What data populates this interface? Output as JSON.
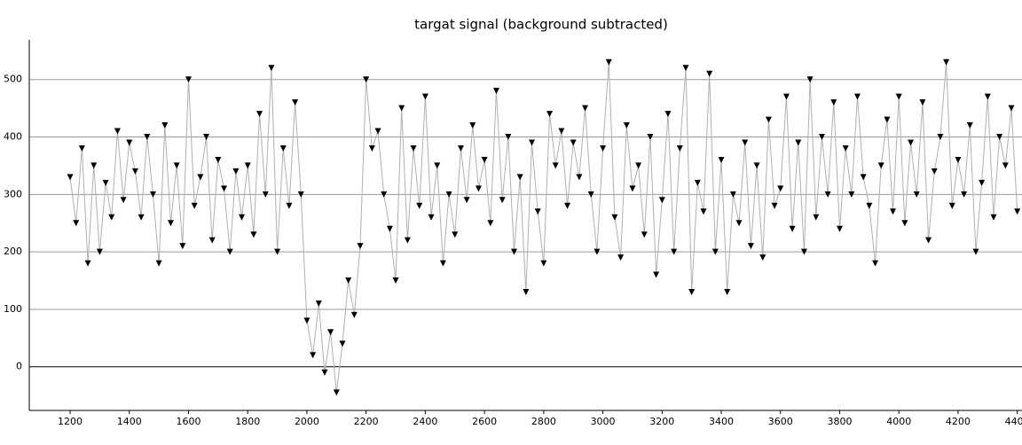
{
  "chart_data": {
    "type": "line",
    "title": "targat signal (background subtracted)",
    "x": [
      1200,
      1220,
      1240,
      1260,
      1280,
      1300,
      1320,
      1340,
      1360,
      1380,
      1400,
      1420,
      1440,
      1460,
      1480,
      1500,
      1520,
      1540,
      1560,
      1580,
      1600,
      1620,
      1640,
      1660,
      1680,
      1700,
      1720,
      1740,
      1760,
      1780,
      1800,
      1820,
      1840,
      1860,
      1880,
      1900,
      1920,
      1940,
      1960,
      1980,
      2000,
      2020,
      2040,
      2060,
      2080,
      2100,
      2120,
      2140,
      2160,
      2180,
      2200,
      2220,
      2240,
      2260,
      2280,
      2300,
      2320,
      2340,
      2360,
      2380,
      2400,
      2420,
      2440,
      2460,
      2480,
      2500,
      2520,
      2540,
      2560,
      2580,
      2600,
      2620,
      2640,
      2660,
      2680,
      2700,
      2720,
      2740,
      2760,
      2780,
      2800,
      2820,
      2840,
      2860,
      2880,
      2900,
      2920,
      2940,
      2960,
      2980,
      3000,
      3020,
      3040,
      3060,
      3080,
      3100,
      3120,
      3140,
      3160,
      3180,
      3200,
      3220,
      3240,
      3260,
      3280,
      3300,
      3320,
      3340,
      3360,
      3380,
      3400,
      3420,
      3440,
      3460,
      3480,
      3500,
      3520,
      3540,
      3560,
      3580,
      3600,
      3620,
      3640,
      3660,
      3680,
      3700,
      3720,
      3740,
      3760,
      3780,
      3800,
      3820,
      3840,
      3860,
      3880,
      3900,
      3920,
      3940,
      3960,
      3980,
      4000,
      4020,
      4040,
      4060,
      4080,
      4100,
      4120,
      4140,
      4160,
      4180,
      4200,
      4220,
      4240,
      4260,
      4280,
      4300,
      4320,
      4340,
      4360,
      4380,
      4400
    ],
    "series": [
      {
        "name": "targat signal",
        "color": "#000000",
        "line_color": "#b0b0b0",
        "values": [
          330,
          250,
          380,
          180,
          350,
          200,
          320,
          260,
          410,
          290,
          390,
          340,
          260,
          400,
          300,
          180,
          420,
          250,
          350,
          210,
          500,
          280,
          330,
          400,
          220,
          360,
          310,
          200,
          340,
          260,
          350,
          230,
          440,
          300,
          520,
          200,
          380,
          280,
          460,
          300,
          80,
          20,
          110,
          -10,
          60,
          -45,
          40,
          150,
          90,
          210,
          500,
          380,
          410,
          300,
          240,
          150,
          450,
          220,
          380,
          280,
          470,
          260,
          350,
          180,
          300,
          230,
          380,
          290,
          420,
          310,
          360,
          250,
          480,
          290,
          400,
          200,
          330,
          130,
          390,
          270,
          180,
          440,
          350,
          410,
          280,
          390,
          330,
          450,
          300,
          200,
          380,
          530,
          260,
          190,
          420,
          310,
          350,
          230,
          400,
          160,
          290,
          440,
          200,
          380,
          520,
          130,
          320,
          270,
          510,
          200,
          360,
          130,
          300,
          250,
          390,
          210,
          350,
          190,
          430,
          280,
          310,
          470,
          240,
          390,
          200,
          500,
          260,
          400,
          300,
          460,
          240,
          380,
          300,
          470,
          330,
          280,
          180,
          350,
          430,
          270,
          470,
          250,
          390,
          300,
          460,
          220,
          340,
          400,
          530,
          280,
          360,
          300,
          420,
          200,
          320,
          470,
          260,
          400,
          350,
          450,
          270
        ]
      }
    ],
    "xlim": [
      1062,
      4416
    ],
    "xticks": [
      1200,
      1400,
      1600,
      1800,
      2000,
      2200,
      2400,
      2600,
      2800,
      3000,
      3200,
      3400,
      3600,
      3800,
      4000,
      4200,
      4400
    ],
    "ylim": [
      -76,
      569
    ],
    "yticks": [
      0,
      100,
      200,
      300,
      400,
      500
    ],
    "grid": true
  }
}
